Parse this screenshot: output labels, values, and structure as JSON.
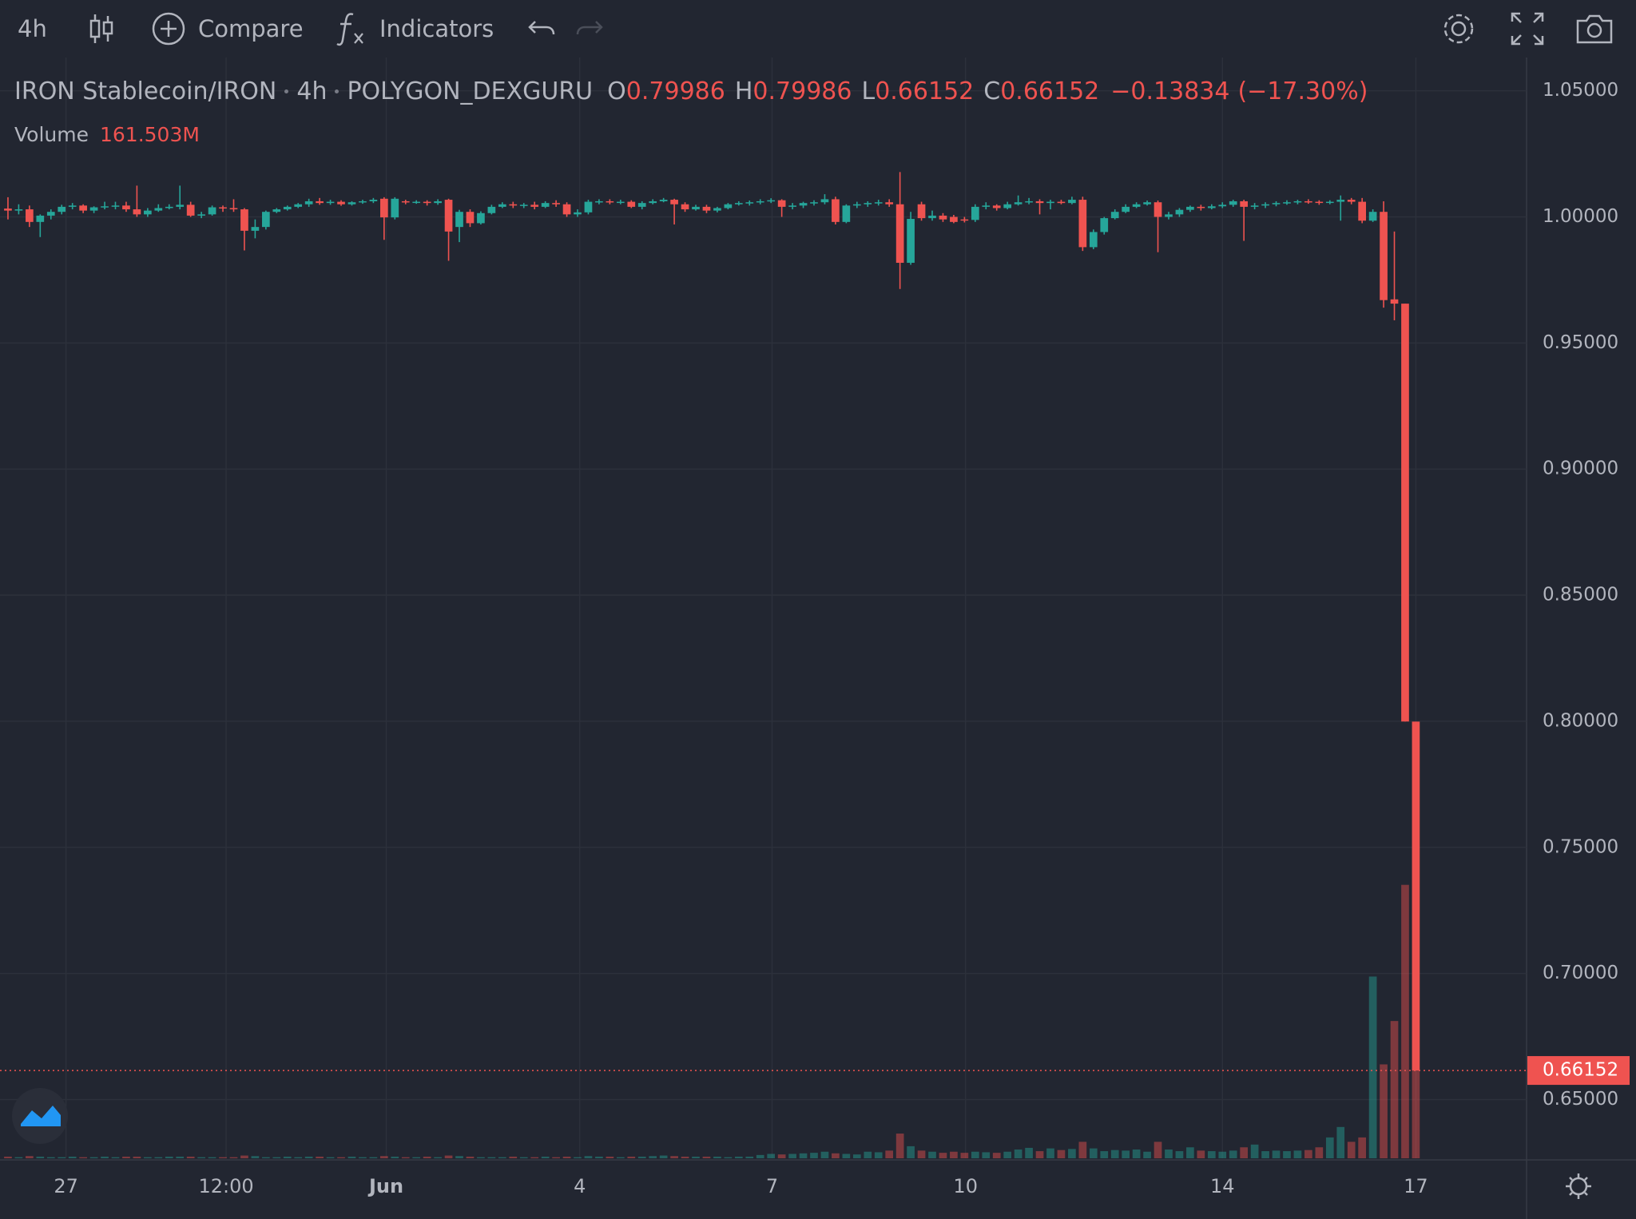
{
  "toolbar": {
    "compare": "Compare",
    "indicators": "Indicators"
  },
  "chart_data": {
    "type": "candlestick",
    "title": "IRON Stablecoin/IRON",
    "interval": "4h",
    "exchange": "POLYGON_DEXGURU",
    "ohlc_labels": [
      "O",
      "H",
      "L",
      "C"
    ],
    "change": {
      "value": -0.13834,
      "label": "−0.13834"
    },
    "change_pct": {
      "value": -17.3,
      "label": "(−17.30%)"
    },
    "volume_title": "Volume",
    "volume_last_label": "161.503M",
    "up_color": "#26a69a",
    "down_color": "#ef5350",
    "grid": true,
    "ylim": [
      0.6267,
      1.0613
    ],
    "yticks": [
      {
        "value": 1.05,
        "label": "1.05000"
      },
      {
        "value": 1.0,
        "label": "1.00000"
      },
      {
        "value": 0.95,
        "label": "0.95000"
      },
      {
        "value": 0.9,
        "label": "0.90000"
      },
      {
        "value": 0.85,
        "label": "0.85000"
      },
      {
        "value": 0.8,
        "label": "0.80000"
      },
      {
        "value": 0.75,
        "label": "0.75000"
      },
      {
        "value": 0.7,
        "label": "0.70000"
      },
      {
        "value": 0.65,
        "label": "0.65000"
      }
    ],
    "xlim": [
      -0.74,
      141.3
    ],
    "xticks": [
      {
        "value": 5.4,
        "label": "27"
      },
      {
        "value": 20.3,
        "label": "12:00"
      },
      {
        "value": 35.2,
        "label": "Jun"
      },
      {
        "value": 53.2,
        "label": "4"
      },
      {
        "value": 71.1,
        "label": "7"
      },
      {
        "value": 89.1,
        "label": "10"
      },
      {
        "value": 113,
        "label": "14"
      },
      {
        "value": 131,
        "label": "17"
      }
    ],
    "bold_xticks": [
      2
    ],
    "volume_ylim": [
      0,
      1996
    ],
    "x": [
      0,
      1,
      2,
      3,
      4,
      5,
      6,
      7,
      8,
      9,
      10,
      11,
      12,
      13,
      14,
      15,
      16,
      17,
      18,
      19,
      20,
      21,
      22,
      23,
      24,
      25,
      26,
      27,
      28,
      29,
      30,
      31,
      32,
      33,
      34,
      35,
      36,
      37,
      38,
      39,
      40,
      41,
      42,
      43,
      44,
      45,
      46,
      47,
      48,
      49,
      50,
      51,
      52,
      53,
      54,
      55,
      56,
      57,
      58,
      59,
      60,
      61,
      62,
      63,
      64,
      65,
      66,
      67,
      68,
      69,
      70,
      71,
      72,
      73,
      74,
      75,
      76,
      77,
      78,
      79,
      80,
      81,
      82,
      83,
      84,
      85,
      86,
      87,
      88,
      89,
      90,
      91,
      92,
      93,
      94,
      95,
      96,
      97,
      98,
      99,
      100,
      101,
      102,
      103,
      104,
      105,
      106,
      107,
      108,
      109,
      110,
      111,
      112,
      113,
      114,
      115,
      116,
      117,
      118,
      119,
      120,
      121,
      122,
      123,
      124,
      125,
      126,
      127,
      128,
      129,
      130,
      131
    ],
    "open": [
      1.0033,
      1.0025,
      1.003,
      0.998,
      1.0005,
      1.002,
      1.004,
      1.0045,
      1.0025,
      1.0038,
      1.0042,
      1.0045,
      1.003,
      1.001,
      1.0025,
      1.0035,
      1.004,
      1.0048,
      1.0005,
      1.001,
      1.0038,
      1.0035,
      1.003,
      0.9945,
      0.996,
      1.002,
      1.003,
      1.004,
      1.005,
      1.0062,
      1.0055,
      1.006,
      1.005,
      1.0058,
      1.0062,
      1.0072,
      0.9998,
      1.0062,
      1.0058,
      1.006,
      1.0055,
      1.0068,
      0.996,
      1.002,
      0.9975,
      1.0015,
      1.004,
      1.005,
      1.0045,
      1.0048,
      1.004,
      1.0055,
      1.005,
      1.001,
      1.0018,
      1.006,
      1.0062,
      1.0058,
      1.006,
      1.004,
      1.0055,
      1.0062,
      1.0068,
      1.005,
      1.003,
      1.004,
      1.0025,
      1.0035,
      1.005,
      1.0055,
      1.0058,
      1.0062,
      1.0066,
      1.004,
      1.0045,
      1.0055,
      1.0058,
      1.007,
      0.998,
      1.0045,
      1.005,
      1.0055,
      1.0058,
      1.005,
      0.9818,
      1.005,
      0.9995,
      1.0005,
      1.0,
      0.999,
      0.9988,
      1.004,
      1.0045,
      1.0035,
      1.005,
      1.0058,
      1.0062,
      1.0055,
      1.006,
      1.0055,
      1.0068,
      0.988,
      0.994,
      0.9995,
      1.002,
      1.004,
      1.005,
      1.0058,
      1.0,
      1.001,
      1.0028,
      1.004,
      1.0035,
      1.0042,
      1.0048,
      1.0062,
      1.004,
      1.0045,
      1.005,
      1.0055,
      1.0058,
      1.0062,
      1.006,
      1.0058,
      1.006,
      1.0068,
      1.006,
      0.9985,
      1.002,
      0.9673,
      0.9656,
      0.79986
    ],
    "high": [
      1.0078,
      1.005,
      1.0045,
      1.001,
      1.003,
      1.0048,
      1.0055,
      1.005,
      1.0042,
      1.006,
      1.006,
      1.006,
      1.0124,
      1.0035,
      1.005,
      1.005,
      1.0124,
      1.006,
      1.002,
      1.0045,
      1.0045,
      1.007,
      1.0035,
      0.999,
      1.0025,
      1.0035,
      1.0045,
      1.0055,
      1.0072,
      1.0075,
      1.0068,
      1.0066,
      1.0062,
      1.0068,
      1.0075,
      1.0078,
      1.0078,
      1.0068,
      1.0066,
      1.0066,
      1.007,
      1.0072,
      1.0028,
      1.003,
      1.0022,
      1.0048,
      1.0058,
      1.006,
      1.0055,
      1.006,
      1.0062,
      1.0066,
      1.0058,
      1.003,
      1.0068,
      1.007,
      1.007,
      1.0068,
      1.0066,
      1.0062,
      1.007,
      1.0075,
      1.0072,
      1.0058,
      1.0048,
      1.0048,
      1.004,
      1.0055,
      1.0062,
      1.0065,
      1.007,
      1.0074,
      1.007,
      1.0055,
      1.006,
      1.0066,
      1.009,
      1.008,
      1.005,
      1.006,
      1.0062,
      1.0068,
      1.007,
      1.0178,
      1.002,
      1.006,
      1.0025,
      1.0015,
      1.0008,
      1.0,
      1.005,
      1.0058,
      1.005,
      1.006,
      1.0085,
      1.0075,
      1.007,
      1.0068,
      1.0068,
      1.008,
      1.008,
      0.995,
      1.0,
      1.003,
      1.005,
      1.0058,
      1.0065,
      1.0065,
      1.002,
      1.0035,
      1.0045,
      1.0048,
      1.005,
      1.0058,
      1.0068,
      1.0068,
      1.0055,
      1.0058,
      1.0062,
      1.0066,
      1.0068,
      1.007,
      1.0066,
      1.0066,
      1.0085,
      1.0075,
      1.0075,
      1.003,
      1.0062,
      0.9942,
      0.9656,
      0.79986
    ],
    "low": [
      0.999,
      1.001,
      0.996,
      0.992,
      0.999,
      1.001,
      1.003,
      1.0015,
      1.0015,
      1.003,
      1.003,
      1.002,
      1.0,
      1.0,
      1.002,
      1.003,
      1.003,
      1.0,
      0.9995,
      1.0005,
      1.002,
      1.002,
      0.9867,
      0.9915,
      0.995,
      1.0015,
      1.0025,
      1.0035,
      1.004,
      1.0048,
      1.0048,
      1.0044,
      1.0045,
      1.0052,
      1.0055,
      0.9909,
      0.999,
      1.005,
      1.0052,
      1.0045,
      1.0048,
      0.9826,
      0.99,
      0.996,
      0.997,
      1.001,
      1.0035,
      1.0035,
      1.0035,
      1.003,
      1.0035,
      1.004,
      1.0,
      1.0,
      1.001,
      1.005,
      1.005,
      1.005,
      1.0035,
      1.003,
      1.005,
      1.0058,
      0.997,
      1.002,
      1.0025,
      1.0015,
      1.0018,
      1.003,
      1.0045,
      1.0045,
      1.005,
      1.0055,
      1.0,
      1.003,
      1.0035,
      1.0045,
      1.005,
      0.997,
      0.9975,
      1.0035,
      1.004,
      1.0045,
      1.004,
      0.9714,
      0.981,
      0.9985,
      0.9985,
      0.998,
      0.9975,
      0.9978,
      0.998,
      1.003,
      1.0025,
      1.003,
      1.0045,
      1.005,
      1.001,
      1.003,
      1.005,
      1.005,
      0.9865,
      0.9872,
      0.993,
      0.999,
      1.0015,
      1.0035,
      1.0045,
      0.986,
      0.999,
      1.0,
      1.002,
      1.0025,
      1.003,
      1.0035,
      1.004,
      0.9905,
      1.003,
      1.0035,
      1.0042,
      1.0048,
      1.005,
      1.0052,
      1.0048,
      1.005,
      0.9985,
      1.005,
      0.9975,
      0.998,
      0.964,
      0.959,
      0.7999,
      0.66152
    ],
    "close": [
      1.0025,
      1.003,
      0.998,
      1.0005,
      1.002,
      1.004,
      1.0045,
      1.0025,
      1.0038,
      1.0042,
      1.0045,
      1.003,
      1.001,
      1.0025,
      1.0035,
      1.004,
      1.0048,
      1.0005,
      1.001,
      1.0038,
      1.0035,
      1.003,
      0.9945,
      0.996,
      1.002,
      1.003,
      1.004,
      1.005,
      1.0062,
      1.0055,
      1.006,
      1.005,
      1.0058,
      1.0062,
      1.0068,
      0.9998,
      1.0072,
      1.0058,
      1.006,
      1.0055,
      1.0062,
      0.9942,
      1.002,
      0.9975,
      1.0015,
      1.004,
      1.005,
      1.0045,
      1.0048,
      1.004,
      1.0055,
      1.005,
      1.001,
      1.0018,
      1.006,
      1.0062,
      1.0058,
      1.006,
      1.004,
      1.0055,
      1.0062,
      1.0068,
      1.005,
      1.003,
      1.004,
      1.0025,
      1.0035,
      1.005,
      1.0055,
      1.0058,
      1.0062,
      1.0066,
      1.004,
      1.0045,
      1.0055,
      1.0058,
      1.007,
      0.998,
      1.0045,
      1.005,
      1.0055,
      1.0058,
      1.005,
      0.9818,
      0.9992,
      0.9995,
      1.0005,
      0.999,
      0.998,
      0.9988,
      1.004,
      1.0045,
      1.0035,
      1.005,
      1.0058,
      1.0062,
      1.0055,
      1.006,
      1.0055,
      1.0068,
      0.988,
      0.994,
      0.9995,
      1.002,
      1.004,
      1.005,
      1.0058,
      1.0,
      1.001,
      1.0028,
      1.004,
      1.0035,
      1.0042,
      1.0048,
      1.0062,
      1.004,
      1.0045,
      1.005,
      1.0055,
      1.0058,
      1.0062,
      1.006,
      1.0058,
      1.006,
      1.0068,
      1.006,
      0.9985,
      1.002,
      0.967,
      0.9656,
      0.7999,
      0.66152
    ],
    "volume": [
      3,
      2,
      4,
      3,
      2,
      2,
      3,
      2,
      2,
      3,
      2,
      3,
      3,
      2,
      2,
      3,
      3,
      3,
      2,
      2,
      2,
      2,
      5,
      4,
      2,
      2,
      3,
      2,
      3,
      3,
      2,
      2,
      3,
      2,
      2,
      4,
      3,
      2,
      2,
      3,
      2,
      5,
      4,
      3,
      2,
      2,
      2,
      3,
      2,
      2,
      3,
      2,
      3,
      2,
      4,
      3,
      3,
      2,
      3,
      3,
      4,
      5,
      4,
      3,
      3,
      3,
      3,
      2,
      3,
      3,
      6,
      8,
      7,
      8,
      9,
      10,
      12,
      9,
      8,
      7,
      12,
      11,
      14,
      45,
      22,
      14,
      12,
      10,
      12,
      10,
      12,
      11,
      10,
      12,
      16,
      19,
      13,
      18,
      15,
      17,
      30,
      18,
      13,
      15,
      14,
      16,
      12,
      30,
      16,
      13,
      20,
      14,
      13,
      12,
      14,
      20,
      25,
      13,
      14,
      13,
      14,
      15,
      20,
      38,
      57,
      30,
      38,
      331,
      171,
      250,
      498,
      161.503
    ]
  }
}
